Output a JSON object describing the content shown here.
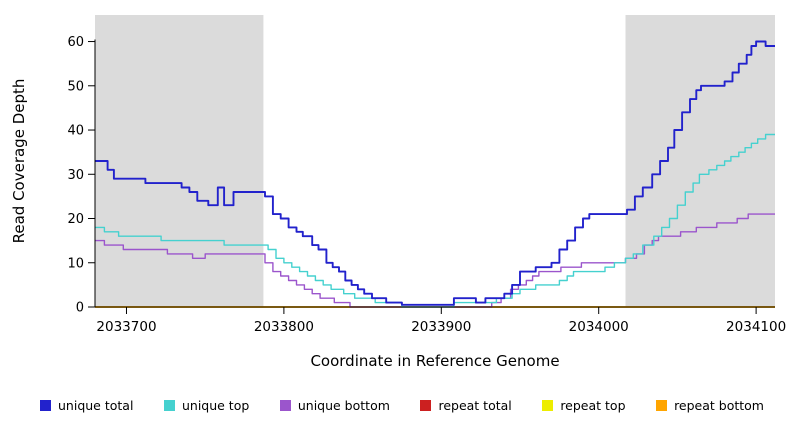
{
  "chart_data": {
    "type": "line",
    "step": true,
    "title": "",
    "xlabel": "Coordinate in Reference Genome",
    "ylabel": "Read Coverage Depth",
    "xlim": [
      2033680,
      2034112
    ],
    "ylim": [
      0,
      66
    ],
    "xticks": [
      2033700,
      2033800,
      2033900,
      2034000,
      2034100
    ],
    "yticks": [
      0,
      10,
      20,
      30,
      40,
      50,
      60
    ],
    "shaded_regions": [
      [
        2033680,
        2033787
      ],
      [
        2034017,
        2034112
      ]
    ],
    "shade_color": "#DBDBDB",
    "grid": false,
    "legend_position": "bottom",
    "draw_order": [
      3,
      4,
      5,
      2,
      1,
      0
    ],
    "series": [
      {
        "name": "unique total",
        "color": "#2222CC",
        "points": [
          [
            2033680,
            33
          ],
          [
            2033688,
            31
          ],
          [
            2033692,
            29
          ],
          [
            2033712,
            28
          ],
          [
            2033735,
            27
          ],
          [
            2033740,
            26
          ],
          [
            2033745,
            24
          ],
          [
            2033752,
            23
          ],
          [
            2033758,
            27
          ],
          [
            2033762,
            23
          ],
          [
            2033768,
            26
          ],
          [
            2033788,
            25
          ],
          [
            2033793,
            21
          ],
          [
            2033798,
            20
          ],
          [
            2033803,
            18
          ],
          [
            2033808,
            17
          ],
          [
            2033812,
            16
          ],
          [
            2033818,
            14
          ],
          [
            2033822,
            13
          ],
          [
            2033827,
            10
          ],
          [
            2033831,
            9
          ],
          [
            2033835,
            8
          ],
          [
            2033839,
            6
          ],
          [
            2033843,
            5
          ],
          [
            2033847,
            4
          ],
          [
            2033851,
            3
          ],
          [
            2033856,
            2
          ],
          [
            2033865,
            1
          ],
          [
            2033875,
            0.5
          ],
          [
            2033908,
            2
          ],
          [
            2033922,
            1
          ],
          [
            2033928,
            2
          ],
          [
            2033940,
            3
          ],
          [
            2033945,
            5
          ],
          [
            2033950,
            8
          ],
          [
            2033960,
            9
          ],
          [
            2033970,
            10
          ],
          [
            2033975,
            13
          ],
          [
            2033980,
            15
          ],
          [
            2033985,
            18
          ],
          [
            2033990,
            20
          ],
          [
            2033994,
            21
          ],
          [
            2034018,
            22
          ],
          [
            2034023,
            25
          ],
          [
            2034028,
            27
          ],
          [
            2034034,
            30
          ],
          [
            2034039,
            33
          ],
          [
            2034044,
            36
          ],
          [
            2034048,
            40
          ],
          [
            2034053,
            44
          ],
          [
            2034058,
            47
          ],
          [
            2034062,
            49
          ],
          [
            2034065,
            50
          ],
          [
            2034080,
            51
          ],
          [
            2034085,
            53
          ],
          [
            2034089,
            55
          ],
          [
            2034094,
            57
          ],
          [
            2034097,
            59
          ],
          [
            2034100,
            60
          ],
          [
            2034106,
            59
          ],
          [
            2034112,
            59
          ]
        ]
      },
      {
        "name": "unique top",
        "color": "#45D1CF",
        "points": [
          [
            2033680,
            18
          ],
          [
            2033686,
            17
          ],
          [
            2033695,
            16
          ],
          [
            2033722,
            15
          ],
          [
            2033762,
            14
          ],
          [
            2033790,
            13
          ],
          [
            2033795,
            11
          ],
          [
            2033800,
            10
          ],
          [
            2033805,
            9
          ],
          [
            2033810,
            8
          ],
          [
            2033815,
            7
          ],
          [
            2033820,
            6
          ],
          [
            2033825,
            5
          ],
          [
            2033830,
            4
          ],
          [
            2033838,
            3
          ],
          [
            2033845,
            2
          ],
          [
            2033858,
            1
          ],
          [
            2033875,
            0
          ],
          [
            2033908,
            1
          ],
          [
            2033935,
            2
          ],
          [
            2033945,
            3
          ],
          [
            2033950,
            4
          ],
          [
            2033960,
            5
          ],
          [
            2033975,
            6
          ],
          [
            2033980,
            7
          ],
          [
            2033984,
            8
          ],
          [
            2034004,
            9
          ],
          [
            2034010,
            10
          ],
          [
            2034017,
            11
          ],
          [
            2034022,
            12
          ],
          [
            2034028,
            14
          ],
          [
            2034035,
            16
          ],
          [
            2034040,
            18
          ],
          [
            2034045,
            20
          ],
          [
            2034050,
            23
          ],
          [
            2034055,
            26
          ],
          [
            2034060,
            28
          ],
          [
            2034064,
            30
          ],
          [
            2034070,
            31
          ],
          [
            2034075,
            32
          ],
          [
            2034080,
            33
          ],
          [
            2034084,
            34
          ],
          [
            2034089,
            35
          ],
          [
            2034093,
            36
          ],
          [
            2034097,
            37
          ],
          [
            2034101,
            38
          ],
          [
            2034106,
            39
          ],
          [
            2034112,
            39
          ]
        ]
      },
      {
        "name": "unique bottom",
        "color": "#9B55CC",
        "points": [
          [
            2033680,
            15
          ],
          [
            2033686,
            14
          ],
          [
            2033698,
            13
          ],
          [
            2033726,
            12
          ],
          [
            2033742,
            11
          ],
          [
            2033750,
            12
          ],
          [
            2033788,
            10
          ],
          [
            2033793,
            8
          ],
          [
            2033798,
            7
          ],
          [
            2033803,
            6
          ],
          [
            2033808,
            5
          ],
          [
            2033813,
            4
          ],
          [
            2033818,
            3
          ],
          [
            2033823,
            2
          ],
          [
            2033832,
            1
          ],
          [
            2033842,
            0
          ],
          [
            2033932,
            1
          ],
          [
            2033938,
            2
          ],
          [
            2033944,
            4
          ],
          [
            2033949,
            5
          ],
          [
            2033954,
            6
          ],
          [
            2033958,
            7
          ],
          [
            2033962,
            8
          ],
          [
            2033976,
            9
          ],
          [
            2033989,
            10
          ],
          [
            2034017,
            11
          ],
          [
            2034024,
            12
          ],
          [
            2034029,
            14
          ],
          [
            2034034,
            15
          ],
          [
            2034038,
            16
          ],
          [
            2034052,
            17
          ],
          [
            2034062,
            18
          ],
          [
            2034075,
            19
          ],
          [
            2034088,
            20
          ],
          [
            2034095,
            21
          ],
          [
            2034112,
            21
          ]
        ]
      },
      {
        "name": "repeat total",
        "color": "#CC2020",
        "points": [
          [
            2033680,
            0
          ],
          [
            2034112,
            0
          ]
        ]
      },
      {
        "name": "repeat top",
        "color": "#EDED00",
        "points": [
          [
            2033680,
            0
          ],
          [
            2034112,
            0
          ]
        ]
      },
      {
        "name": "repeat bottom",
        "color": "#FFA500",
        "points": [
          [
            2033680,
            0
          ],
          [
            2034112,
            0
          ]
        ]
      }
    ]
  },
  "legend": {
    "items": [
      {
        "label": "unique total",
        "color": "#2222CC"
      },
      {
        "label": "unique top",
        "color": "#45D1CF"
      },
      {
        "label": "unique bottom",
        "color": "#9B55CC"
      },
      {
        "label": "repeat total",
        "color": "#CC2020"
      },
      {
        "label": "repeat top",
        "color": "#EDED00"
      },
      {
        "label": "repeat bottom",
        "color": "#FFA500"
      }
    ]
  }
}
